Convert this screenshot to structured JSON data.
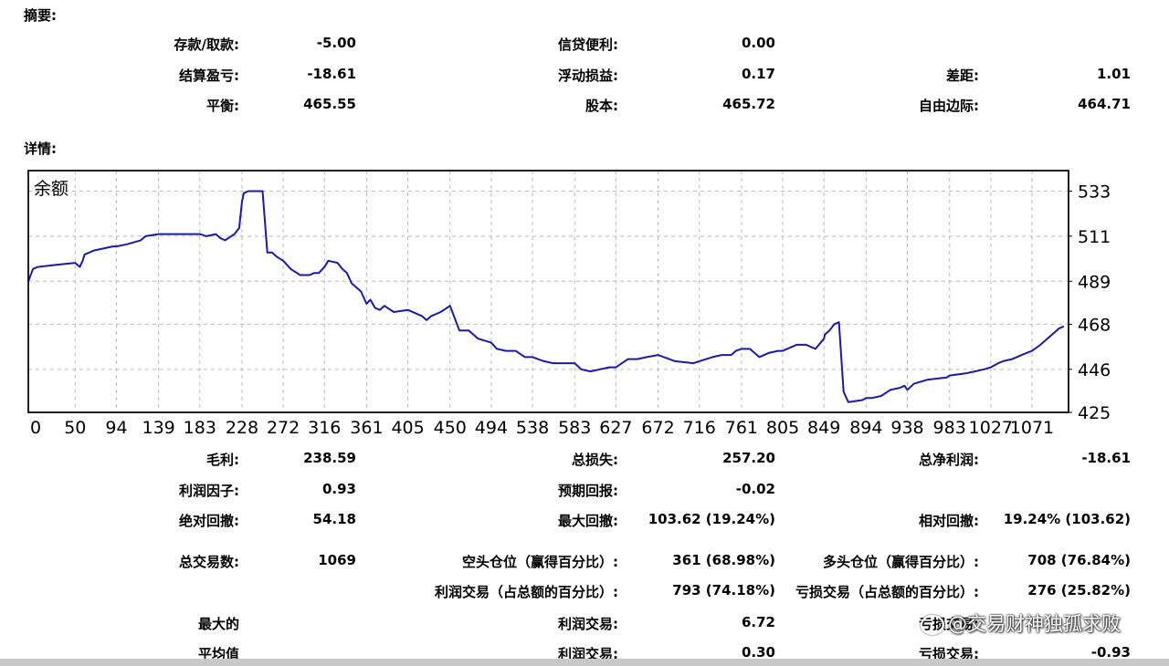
{
  "summary": {
    "title": "摘要:",
    "rows": [
      [
        {
          "label": "存款/取款:",
          "value": "-5.00"
        },
        {
          "label": "信贷便利:",
          "value": "0.00"
        },
        {
          "label": "",
          "value": ""
        }
      ],
      [
        {
          "label": "结算盈亏:",
          "value": "-18.61"
        },
        {
          "label": "浮动损益:",
          "value": "0.17"
        },
        {
          "label": "差距:",
          "value": "1.01"
        }
      ],
      [
        {
          "label": "平衡:",
          "value": "465.55"
        },
        {
          "label": "股本:",
          "value": "465.72"
        },
        {
          "label": "自由边际:",
          "value": "464.71"
        }
      ]
    ]
  },
  "details": {
    "title": "详情:",
    "rows": [
      [
        {
          "label": "毛利:",
          "value": "238.59"
        },
        {
          "label": "总损失:",
          "value": "257.20"
        },
        {
          "label": "总净利润:",
          "value": "-18.61"
        }
      ],
      [
        {
          "label": "利润因子:",
          "value": "0.93"
        },
        {
          "label": "预期回报:",
          "value": "-0.02"
        },
        {
          "label": "",
          "value": ""
        }
      ],
      [
        {
          "label": "绝对回撤:",
          "value": "54.18"
        },
        {
          "label": "最大回撤:",
          "value": "103.62 (19.24%)"
        },
        {
          "label": "相对回撤:",
          "value": "19.24% (103.62)"
        }
      ],
      [
        {
          "label": "总交易数:",
          "value": "1069"
        },
        {
          "label": "空头仓位（赢得百分比）:",
          "value": "361 (68.98%)"
        },
        {
          "label": "多头仓位（赢得百分比）:",
          "value": "708 (76.84%)"
        }
      ],
      [
        {
          "label": "",
          "value": ""
        },
        {
          "label": "利润交易（占总额的百分比）:",
          "value": "793 (74.18%)"
        },
        {
          "label": "亏损交易（占总额的百分比）:",
          "value": "276 (25.82%)"
        }
      ],
      [
        {
          "label": "最大的",
          "value": ""
        },
        {
          "label": "利润交易:",
          "value": "6.72"
        },
        {
          "label": "亏损交易:",
          "value": ""
        }
      ],
      [
        {
          "label": "平均值",
          "value": ""
        },
        {
          "label": "利润交易:",
          "value": "0.30"
        },
        {
          "label": "亏损交易:",
          "value": "-0.93"
        }
      ]
    ]
  },
  "watermark": "@交易财神独孤求败",
  "colors": {
    "line": "#1a1aa8",
    "grid": "#b8b8b8",
    "frame": "#000000",
    "bottom_bar": "#c8c8c8"
  },
  "chart_data": {
    "type": "line",
    "title": "余额",
    "xlabel": "",
    "ylabel": "",
    "x_ticks": [
      "0",
      "50",
      "94",
      "139",
      "183",
      "228",
      "272",
      "316",
      "361",
      "405",
      "450",
      "494",
      "538",
      "583",
      "627",
      "672",
      "716",
      "761",
      "805",
      "849",
      "894",
      "938",
      "983",
      "1027",
      "1071"
    ],
    "y_ticks": [
      "533",
      "511",
      "489",
      "468",
      "446",
      "425"
    ],
    "xlim": [
      0,
      1110
    ],
    "ylim": [
      425,
      543
    ],
    "grid": true,
    "series": [
      {
        "name": "",
        "x": [
          0,
          5,
          10,
          30,
          50,
          55,
          58,
          60,
          70,
          90,
          94,
          105,
          120,
          125,
          139,
          160,
          175,
          183,
          190,
          200,
          205,
          210,
          220,
          225,
          228,
          230,
          235,
          240,
          250,
          255,
          260,
          265,
          272,
          280,
          290,
          300,
          305,
          310,
          316,
          320,
          330,
          335,
          340,
          345,
          355,
          361,
          365,
          370,
          375,
          380,
          390,
          405,
          420,
          425,
          430,
          440,
          450,
          460,
          470,
          480,
          494,
          500,
          510,
          520,
          530,
          538,
          550,
          560,
          570,
          575,
          583,
          590,
          600,
          610,
          620,
          627,
          640,
          650,
          660,
          672,
          690,
          710,
          716,
          730,
          740,
          750,
          755,
          761,
          770,
          780,
          790,
          800,
          805,
          815,
          820,
          830,
          840,
          849,
          850,
          855,
          860,
          865,
          870,
          875,
          890,
          894,
          900,
          910,
          920,
          930,
          935,
          938,
          945,
          960,
          980,
          983,
          1000,
          1010,
          1020,
          1027,
          1035,
          1040,
          1050,
          1060,
          1071,
          1080,
          1090,
          1100,
          1105
        ],
        "y": [
          489,
          495,
          496,
          497,
          498,
          496,
          499,
          502,
          504,
          506,
          506,
          507,
          509,
          511,
          512,
          512,
          512,
          512,
          511,
          512,
          510,
          509,
          512,
          515,
          528,
          532,
          533,
          533,
          533,
          503,
          503,
          501,
          499,
          495,
          492,
          492,
          493,
          493,
          496,
          499,
          498,
          495,
          493,
          488,
          484,
          478,
          480,
          476,
          475,
          477,
          474,
          475,
          472,
          470,
          472,
          474,
          477,
          465,
          465,
          461,
          459,
          456,
          455,
          455,
          452,
          452,
          450,
          449,
          449,
          449,
          449,
          446,
          445,
          446,
          447,
          447,
          451,
          451,
          452,
          453,
          450,
          449,
          450,
          452,
          453,
          453,
          455,
          456,
          456,
          452,
          454,
          455,
          455,
          457,
          458,
          458,
          456,
          461,
          463,
          465,
          468,
          469,
          435,
          430,
          431,
          432,
          432,
          433,
          436,
          437,
          438,
          436,
          439,
          441,
          442,
          443,
          444,
          445,
          446,
          447,
          449,
          450,
          451,
          453,
          455,
          458,
          462,
          466,
          467
        ]
      }
    ]
  }
}
